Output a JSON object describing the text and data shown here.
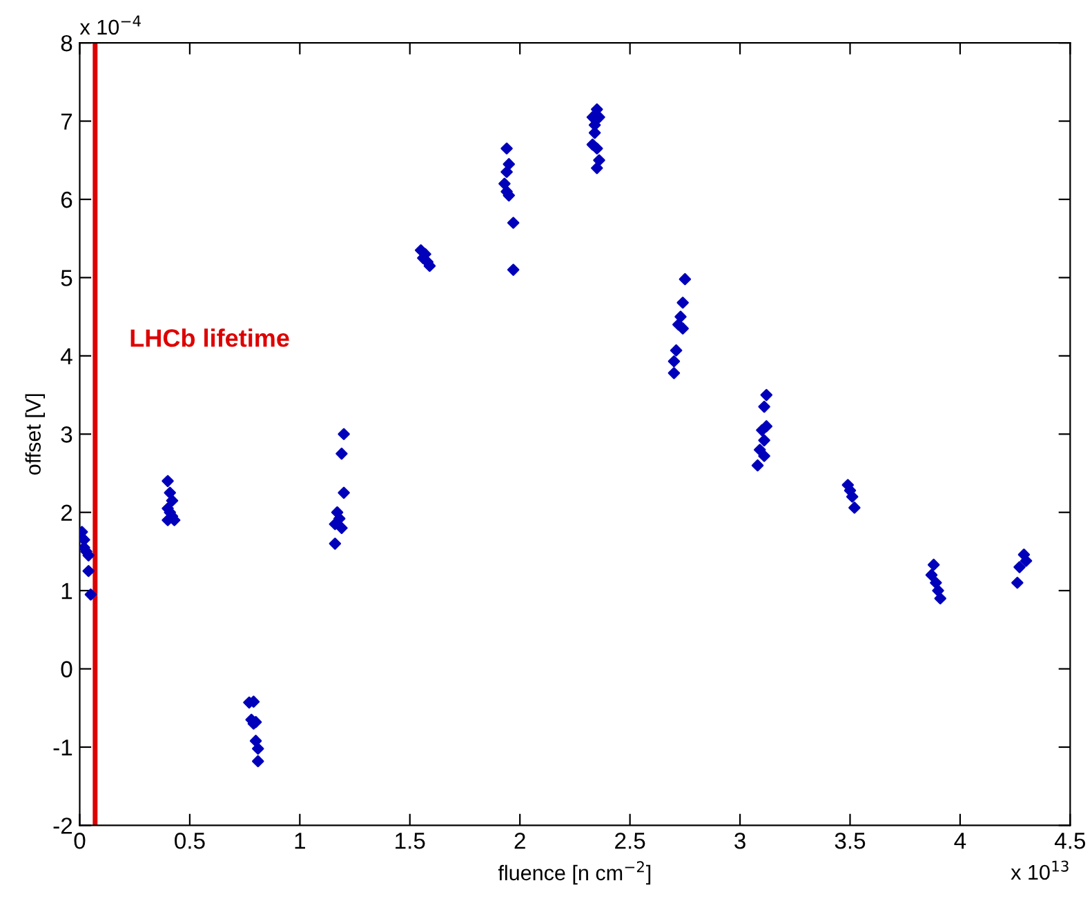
{
  "chart_data": {
    "type": "scatter",
    "xlabel": "fluence [n cm$^{−2}$]",
    "ylabel": "offset [V]",
    "annotations": [
      "x 10$^{−4}$",
      "x 10$^{13}$"
    ],
    "xlim": [
      0,
      4.5
    ],
    "xticks": [
      0,
      0.5,
      1,
      1.5,
      2,
      2.5,
      3,
      3.5,
      4,
      4.5
    ],
    "ylim": [
      -2,
      8
    ],
    "yticks": [
      -2,
      -1,
      0,
      1,
      2,
      3,
      4,
      5,
      6,
      7,
      8
    ],
    "grid": false,
    "marker": "diamond",
    "ref_lines": [
      {
        "axis": "x",
        "value": 0.07,
        "label": "LHCb lifetime",
        "color": "#dd0000"
      }
    ],
    "series": [
      {
        "color": "#0000bb",
        "x": [
          0.0,
          0.01,
          0.02,
          0.02,
          0.03,
          0.04,
          0.04,
          0.05,
          0.4,
          0.41,
          0.42,
          0.4,
          0.41,
          0.42,
          0.4,
          0.43,
          0.77,
          0.79,
          0.78,
          0.8,
          0.79,
          0.8,
          0.81,
          0.81,
          1.2,
          1.19,
          1.2,
          1.17,
          1.18,
          1.16,
          1.19,
          1.16,
          1.55,
          1.57,
          1.56,
          1.58,
          1.59,
          1.94,
          1.95,
          1.94,
          1.93,
          1.94,
          1.95,
          1.97,
          1.97,
          2.35,
          2.33,
          2.36,
          2.34,
          2.34,
          2.33,
          2.35,
          2.36,
          2.35,
          2.75,
          2.74,
          2.73,
          2.72,
          2.74,
          2.71,
          2.7,
          2.7,
          3.12,
          3.11,
          3.12,
          3.1,
          3.11,
          3.09,
          3.11,
          3.08,
          3.49,
          3.5,
          3.51,
          3.52,
          3.88,
          3.87,
          3.89,
          3.9,
          3.91,
          4.29,
          4.27,
          4.3,
          4.26
        ],
        "values": [
          1.7,
          1.75,
          1.65,
          1.55,
          1.5,
          1.45,
          1.25,
          0.95,
          2.4,
          2.25,
          2.15,
          2.05,
          2.0,
          1.95,
          1.9,
          1.9,
          -0.43,
          -0.42,
          -0.65,
          -0.68,
          -0.7,
          -0.92,
          -1.02,
          -1.18,
          3.0,
          2.75,
          2.25,
          2.0,
          1.92,
          1.85,
          1.8,
          1.6,
          5.35,
          5.3,
          5.25,
          5.2,
          5.15,
          6.65,
          6.45,
          6.35,
          6.2,
          6.1,
          6.05,
          5.7,
          5.1,
          7.15,
          7.05,
          7.05,
          6.95,
          6.85,
          6.7,
          6.65,
          6.5,
          6.4,
          4.98,
          4.68,
          4.5,
          4.4,
          4.35,
          4.07,
          3.93,
          3.78,
          3.5,
          3.35,
          3.1,
          3.05,
          2.92,
          2.8,
          2.72,
          2.6,
          2.35,
          2.28,
          2.2,
          2.06,
          1.33,
          1.2,
          1.1,
          1.0,
          0.9,
          1.46,
          1.3,
          1.38,
          1.1
        ]
      }
    ]
  }
}
